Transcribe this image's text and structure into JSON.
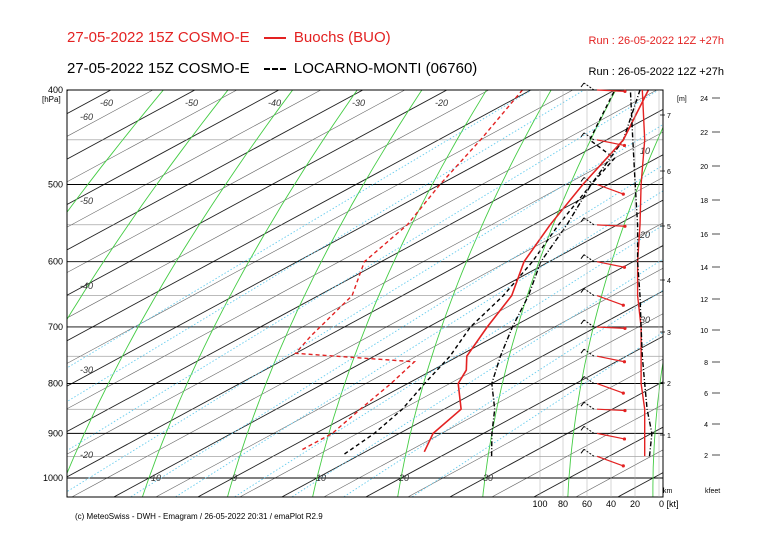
{
  "header": {
    "line1": {
      "title": "27-05-2022 15Z COSMO-E",
      "legend_label": "Buochs (BUO)",
      "run": "Run : 26-05-2022 12Z +27h"
    },
    "line2": {
      "title": "27-05-2022 15Z COSMO-E",
      "legend_label": "LOCARNO-MONTI (06760)",
      "run": "Run : 26-05-2022 12Z +27h"
    }
  },
  "footer": {
    "credit": "(c) MeteoSwiss - DWH - Emagram / 26-05-2022  20:31 / emaPlot R2.9"
  },
  "colors": {
    "series1": "#e32222",
    "series2": "#000000",
    "dry_adiabat": "#44cc44",
    "mixing_ratio": "#66ccee",
    "isotherm": "#333333"
  },
  "chart_data": {
    "type": "line",
    "subtype": "emagram (skew-T log-p)",
    "y_axis": {
      "label": "[hPa]",
      "scale": "log",
      "ticks": [
        400,
        500,
        600,
        700,
        800,
        900,
        1000
      ],
      "range": [
        1000,
        400
      ]
    },
    "temperature_labels_top": [
      "-60",
      "-50",
      "-40",
      "-30",
      "-20"
    ],
    "temperature_labels_left": [
      "-60",
      "-50",
      "-40",
      "-30",
      "-20"
    ],
    "temperature_labels_bottom": [
      "-10",
      "0",
      "10",
      "20",
      "30"
    ],
    "mixing_ratio_labels": [
      "10",
      "20",
      "30"
    ],
    "height_km_axis": {
      "label": "[m]",
      "ticks": [
        "1",
        "2",
        "3",
        "4",
        "5",
        "6",
        "7"
      ],
      "unit_label": "km"
    },
    "height_kfeet_axis": {
      "ticks": [
        "2",
        "4",
        "6",
        "8",
        "10",
        "12",
        "14",
        "16",
        "18",
        "20",
        "22",
        "24"
      ],
      "unit_label": "kfeet"
    },
    "wind_axis": {
      "ticks": [
        "100",
        "80",
        "60",
        "40",
        "20",
        "0 [kt]"
      ]
    },
    "series": [
      {
        "name": "Buochs (BUO)",
        "color": "#e32222",
        "temperature": [
          [
            940,
            17
          ],
          [
            900,
            14
          ],
          [
            850,
            12
          ],
          [
            800,
            6
          ],
          [
            775,
            4
          ],
          [
            750,
            1
          ],
          [
            700,
            -3
          ],
          [
            650,
            -7
          ],
          [
            600,
            -13
          ],
          [
            550,
            -18
          ],
          [
            500,
            -23
          ],
          [
            450,
            -28
          ],
          [
            400,
            -36
          ]
        ],
        "dewpoint": [
          [
            935,
            2
          ],
          [
            900,
            2
          ],
          [
            850,
            0
          ],
          [
            800,
            -2
          ],
          [
            760,
            -4
          ],
          [
            745,
            -20
          ],
          [
            715,
            -22
          ],
          [
            650,
            -26
          ],
          [
            600,
            -32
          ],
          [
            550,
            -35
          ],
          [
            500,
            -40
          ],
          [
            450,
            -45
          ],
          [
            400,
            -51
          ]
        ],
        "wind_profile_kt": [
          [
            950,
            12
          ],
          [
            900,
            12
          ],
          [
            850,
            12
          ],
          [
            800,
            15
          ],
          [
            750,
            15
          ],
          [
            700,
            15
          ],
          [
            650,
            18
          ],
          [
            600,
            18
          ],
          [
            550,
            16
          ],
          [
            500,
            15
          ],
          [
            450,
            12
          ],
          [
            400,
            14
          ]
        ]
      },
      {
        "name": "LOCARNO-MONTI (06760)",
        "color": "#000000",
        "temperature": [
          [
            950,
            26
          ],
          [
            900,
            21
          ],
          [
            850,
            16
          ],
          [
            800,
            10
          ],
          [
            750,
            5
          ],
          [
            700,
            0
          ],
          [
            650,
            -5
          ],
          [
            600,
            -11
          ],
          [
            550,
            -16
          ],
          [
            500,
            -22
          ],
          [
            450,
            -28
          ],
          [
            400,
            -37
          ]
        ],
        "dewpoint": [
          [
            945,
            8
          ],
          [
            900,
            7
          ],
          [
            850,
            5
          ],
          [
            800,
            2
          ],
          [
            750,
            -1
          ],
          [
            700,
            -5
          ],
          [
            650,
            -8
          ],
          [
            600,
            -12
          ],
          [
            550,
            -17
          ],
          [
            500,
            -22
          ],
          [
            470,
            -25
          ],
          [
            450,
            -32
          ],
          [
            400,
            -40
          ]
        ],
        "wind_profile_kt": [
          [
            950,
            8
          ],
          [
            900,
            6
          ],
          [
            850,
            10
          ],
          [
            800,
            12
          ],
          [
            750,
            14
          ],
          [
            700,
            15
          ],
          [
            650,
            16
          ],
          [
            600,
            18
          ],
          [
            550,
            18
          ],
          [
            500,
            20
          ],
          [
            450,
            22
          ],
          [
            400,
            24
          ]
        ]
      }
    ]
  }
}
